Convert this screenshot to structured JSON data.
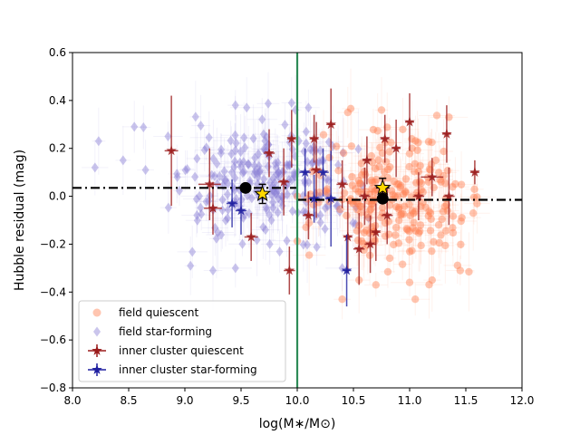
{
  "chart_data": {
    "type": "scatter",
    "title": "",
    "xlabel": "log(M∗/M⊙)",
    "ylabel": "Hubble residual (mag)",
    "xlim": [
      8.0,
      12.0
    ],
    "ylim": [
      -0.8,
      0.6
    ],
    "xticks": [
      "8.0",
      "8.5",
      "9.0",
      "9.5",
      "10.0",
      "10.5",
      "11.0",
      "11.5",
      "12.0"
    ],
    "yticks": [
      "−0.8",
      "−0.6",
      "−0.4",
      "−0.2",
      "0.0",
      "0.2",
      "0.4",
      "0.6"
    ],
    "grid": false,
    "legend_position": "lower-left",
    "mass_step": {
      "step_location": 10.0,
      "low_mass_mean": 0.035,
      "high_mass_mean": -0.015,
      "step_line_color": "#2e8b57",
      "mean_line_color": "#000000"
    },
    "colors": {
      "field_quiescent": "#ff7f50",
      "field_star_forming": "#8a7fd4",
      "inner_quiescent": "#9b1c1c",
      "inner_star_forming": "#1f1fa0",
      "star_marker_fill": "#ffd700"
    },
    "series": [
      {
        "name": "field quiescent",
        "marker": "circle",
        "color": "#ff7f50",
        "count": 240,
        "mass_range": [
          10.0,
          11.6
        ],
        "mass_center": 10.85,
        "residual_center": -0.01,
        "residual_spread": 0.14,
        "notable_points": [
          [
            10.45,
            0.35
          ],
          [
            10.75,
            0.36
          ],
          [
            11.35,
            0.33
          ],
          [
            10.55,
            -0.35
          ],
          [
            10.7,
            -0.37
          ],
          [
            11.05,
            -0.43
          ],
          [
            11.2,
            -0.35
          ],
          [
            11.45,
            -0.31
          ],
          [
            10.4,
            -0.43
          ],
          [
            11.0,
            -0.36
          ]
        ]
      },
      {
        "name": "field star-forming",
        "marker": "diamond",
        "color": "#8a7fd4",
        "count": 230,
        "mass_range": [
          8.2,
          10.9
        ],
        "mass_center": 9.75,
        "residual_center": 0.04,
        "residual_spread": 0.13,
        "notable_points": [
          [
            8.2,
            0.12
          ],
          [
            8.45,
            0.15
          ],
          [
            8.55,
            0.29
          ],
          [
            8.65,
            0.11
          ],
          [
            8.85,
            0.25
          ],
          [
            9.05,
            -0.29
          ],
          [
            9.25,
            -0.31
          ],
          [
            9.45,
            -0.3
          ],
          [
            9.45,
            0.38
          ],
          [
            9.55,
            0.37
          ],
          [
            9.95,
            0.39
          ],
          [
            10.1,
            0.37
          ],
          [
            10.4,
            -0.3
          ]
        ]
      },
      {
        "name": "inner cluster quiescent",
        "marker": "star",
        "color": "#9b1c1c",
        "points": [
          [
            8.88,
            0.19,
            0.06,
            0.23
          ],
          [
            9.22,
            0.05,
            0.1,
            0.15
          ],
          [
            9.25,
            -0.05,
            0.08,
            0.11
          ],
          [
            9.59,
            -0.17,
            0.06,
            0.1
          ],
          [
            9.75,
            0.18,
            0.05,
            0.1
          ],
          [
            9.88,
            0.06,
            0.05,
            0.14
          ],
          [
            9.93,
            -0.31,
            0.05,
            0.1
          ],
          [
            9.95,
            0.24,
            0.04,
            0.12
          ],
          [
            10.1,
            -0.08,
            0.05,
            0.1
          ],
          [
            10.15,
            0.24,
            0.04,
            0.1
          ],
          [
            10.17,
            0.11,
            0.05,
            0.2
          ],
          [
            10.3,
            0.3,
            0.04,
            0.15
          ],
          [
            10.4,
            0.05,
            0.05,
            0.1
          ],
          [
            10.45,
            -0.17,
            0.04,
            0.15
          ],
          [
            10.55,
            -0.22,
            0.05,
            0.15
          ],
          [
            10.6,
            0.0,
            0.05,
            0.12
          ],
          [
            10.62,
            0.15,
            0.04,
            0.1
          ],
          [
            10.65,
            -0.2,
            0.05,
            0.12
          ],
          [
            10.7,
            -0.15,
            0.04,
            0.12
          ],
          [
            10.78,
            0.24,
            0.04,
            0.1
          ],
          [
            10.8,
            -0.08,
            0.05,
            0.12
          ],
          [
            10.88,
            0.2,
            0.04,
            0.12
          ],
          [
            11.0,
            0.31,
            0.04,
            0.12
          ],
          [
            11.08,
            0.0,
            0.05,
            0.1
          ],
          [
            11.2,
            0.08,
            0.1,
            0.08
          ],
          [
            11.33,
            0.26,
            0.04,
            0.12
          ],
          [
            11.35,
            0.0,
            0.05,
            0.12
          ],
          [
            11.58,
            0.1,
            0.04,
            0.05
          ]
        ]
      },
      {
        "name": "inner cluster star-forming",
        "marker": "star",
        "color": "#1f1fa0",
        "points": [
          [
            9.42,
            -0.03,
            0.05,
            0.1
          ],
          [
            9.5,
            -0.06,
            0.05,
            0.1
          ],
          [
            10.07,
            0.1,
            0.05,
            0.1
          ],
          [
            10.15,
            -0.01,
            0.05,
            0.1
          ],
          [
            10.23,
            0.1,
            0.05,
            0.1
          ],
          [
            10.3,
            -0.01,
            0.05,
            0.2
          ],
          [
            10.44,
            -0.31,
            0.04,
            0.15
          ]
        ]
      }
    ],
    "mean_markers": [
      {
        "name": "low-mass mean",
        "marker": "circle",
        "color": "#000000",
        "x": 9.54,
        "y": 0.035
      },
      {
        "name": "low-mass inner mean",
        "marker": "star",
        "color": "#ffd700",
        "x": 9.69,
        "y": 0.01,
        "xerr": 0.05,
        "yerr": 0.04
      },
      {
        "name": "high-mass mean",
        "marker": "circle",
        "color": "#000000",
        "x": 10.76,
        "y": -0.01
      },
      {
        "name": "high-mass inner mean",
        "marker": "star",
        "color": "#ffd700",
        "x": 10.76,
        "y": 0.035,
        "xerr": 0.06,
        "yerr": 0.04
      }
    ]
  }
}
